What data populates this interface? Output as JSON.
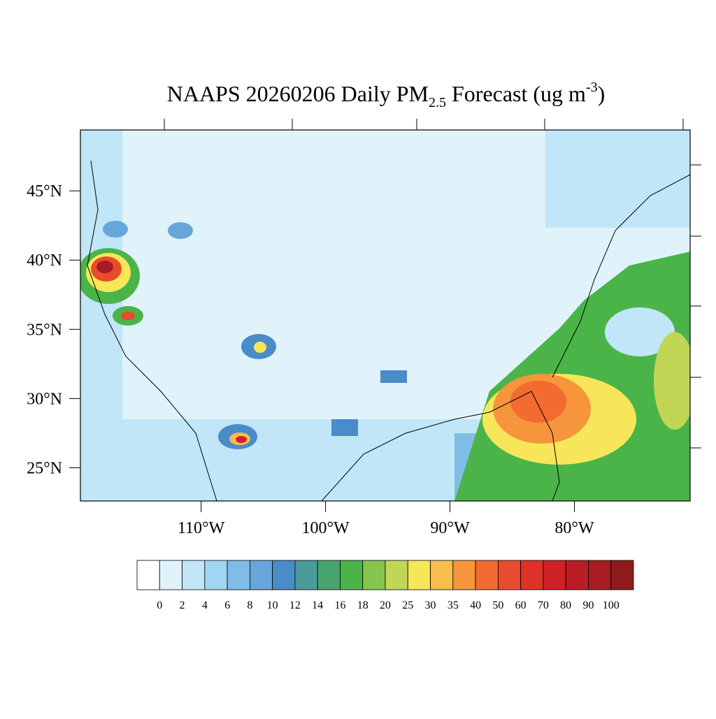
{
  "map": {
    "title": {
      "main": "NAAPS 20260206 Daily PM",
      "sub": "2.5",
      "mid": " Forecast (ug m",
      "sup": "-3",
      "end": ")"
    },
    "lonlim": [
      -119.7,
      -70.7
    ],
    "latlim": [
      22.6,
      49.4
    ],
    "lat_ticks": [
      {
        "value": 45,
        "label": "45°N"
      },
      {
        "value": 40,
        "label": "40°N"
      },
      {
        "value": 35,
        "label": "35°N"
      },
      {
        "value": 30,
        "label": "30°N"
      },
      {
        "value": 25,
        "label": "25°N"
      }
    ],
    "lon_ticks": [
      {
        "value": -110,
        "label": "110°W"
      },
      {
        "value": -100,
        "label": "100°W"
      },
      {
        "value": -90,
        "label": "90°W"
      },
      {
        "value": -80,
        "label": "80°W"
      }
    ]
  },
  "colorbar": {
    "ticks": [
      0,
      2,
      4,
      6,
      8,
      10,
      12,
      14,
      16,
      18,
      20,
      25,
      30,
      35,
      40,
      50,
      60,
      70,
      80,
      90,
      100
    ],
    "colors": [
      "#ffffff",
      "#e0f3fb",
      "#c0e6f7",
      "#9fd6f2",
      "#80bde6",
      "#66a6da",
      "#4a8bc9",
      "#4a9a9a",
      "#48a46e",
      "#4bb449",
      "#86c54d",
      "#c2d656",
      "#f7e65a",
      "#f8bd4b",
      "#f6953c",
      "#f26b30",
      "#e84c2d",
      "#dd3327",
      "#d02128",
      "#b91d26",
      "#a71b22",
      "#8e1a1c"
    ]
  }
}
